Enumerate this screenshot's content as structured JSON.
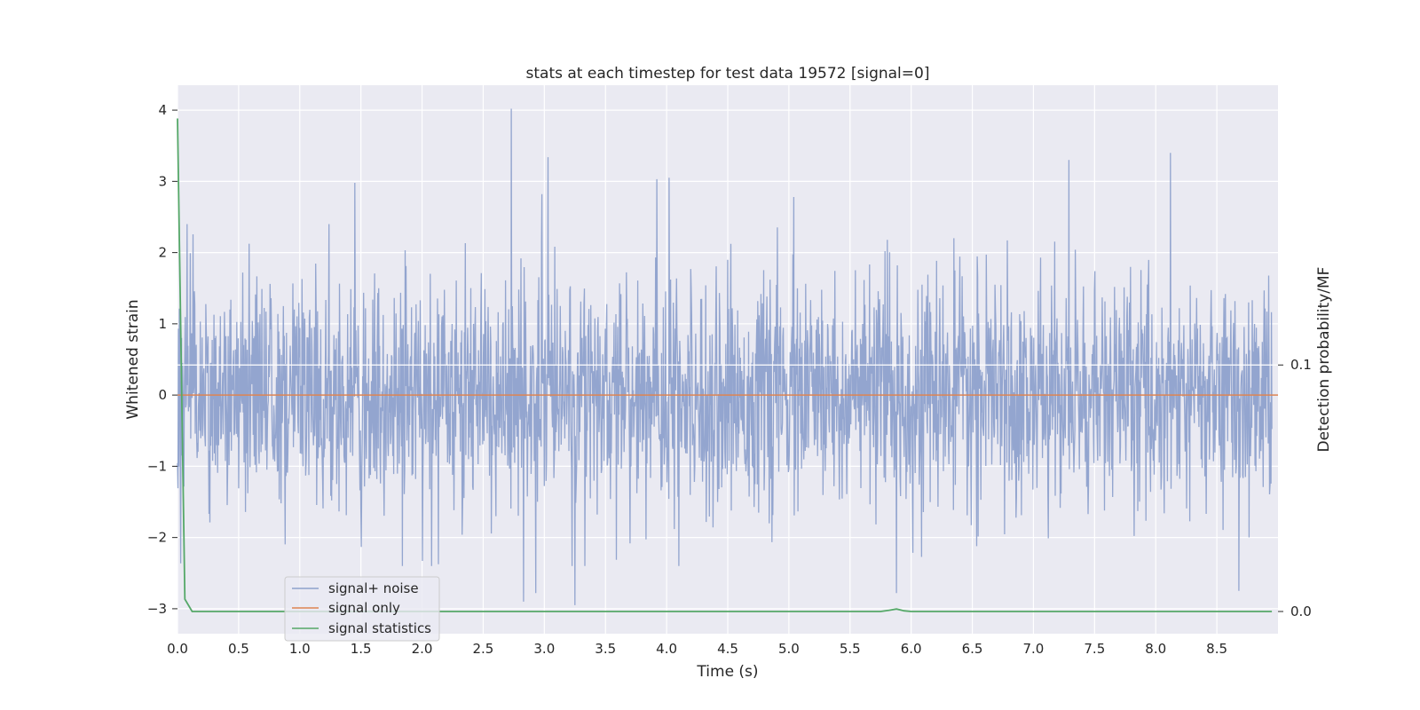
{
  "chart_data": {
    "type": "line",
    "title": "stats at each timestep for test data 19572 [signal=0]",
    "xlabel": "Time (s)",
    "ylabel": "Whitened strain",
    "y2label": "Detection probability/MF",
    "xlim": [
      0.0,
      9.0
    ],
    "ylim": [
      -3.35,
      4.35
    ],
    "y2lim": [
      -0.009,
      0.2135
    ],
    "x_ticks": [
      "0.0",
      "0.5",
      "1.0",
      "1.5",
      "2.0",
      "2.5",
      "3.0",
      "3.5",
      "4.0",
      "4.5",
      "5.0",
      "5.5",
      "6.0",
      "6.5",
      "7.0",
      "7.5",
      "8.0",
      "8.5"
    ],
    "y_ticks": [
      "−3",
      "−2",
      "−1",
      "0",
      "1",
      "2",
      "3",
      "4"
    ],
    "y2_ticks": [
      "0.0",
      "0.1"
    ],
    "grid": true,
    "legend_position": "lower-left",
    "series": [
      {
        "name": "signal+ noise",
        "color": "#8ea1cc",
        "axis": "left",
        "style": "dense noise, amplitude mostly within ±2 (peaks)",
        "peaks": [
          {
            "x": 2.73,
            "y": 4.02
          },
          {
            "x": 3.03,
            "y": 3.34
          },
          {
            "x": 8.12,
            "y": 3.4
          },
          {
            "x": 7.29,
            "y": 3.3
          },
          {
            "x": 4.02,
            "y": 3.05
          },
          {
            "x": 3.92,
            "y": 3.03
          },
          {
            "x": 1.45,
            "y": 2.98
          },
          {
            "x": 5.04,
            "y": 2.78
          },
          {
            "x": 2.98,
            "y": 2.82
          },
          {
            "x": 3.25,
            "y": -2.95
          },
          {
            "x": 2.83,
            "y": -2.9
          },
          {
            "x": 2.93,
            "y": -2.78
          },
          {
            "x": 5.88,
            "y": -2.78
          },
          {
            "x": 8.68,
            "y": -2.75
          }
        ]
      },
      {
        "name": "signal only",
        "color": "#dd8452",
        "axis": "left",
        "x": [
          0.0,
          9.0
        ],
        "y": [
          0.0,
          0.0
        ]
      },
      {
        "name": "signal statistics",
        "color": "#55a868",
        "axis": "right",
        "x": [
          0.0,
          0.06,
          0.12,
          0.2,
          1.0,
          2.0,
          3.0,
          4.0,
          5.0,
          5.75,
          5.82,
          5.88,
          5.94,
          6.0,
          7.0,
          8.0,
          8.95
        ],
        "y": [
          0.2,
          0.005,
          0.0,
          0.0,
          0.0,
          0.0,
          0.0,
          0.0,
          0.0,
          0.0,
          0.0005,
          0.001,
          0.0003,
          0.0,
          0.0,
          0.0,
          0.0
        ]
      }
    ],
    "threshold_line": {
      "axis": "right",
      "y": 0.1,
      "color": "#ffffff"
    }
  }
}
